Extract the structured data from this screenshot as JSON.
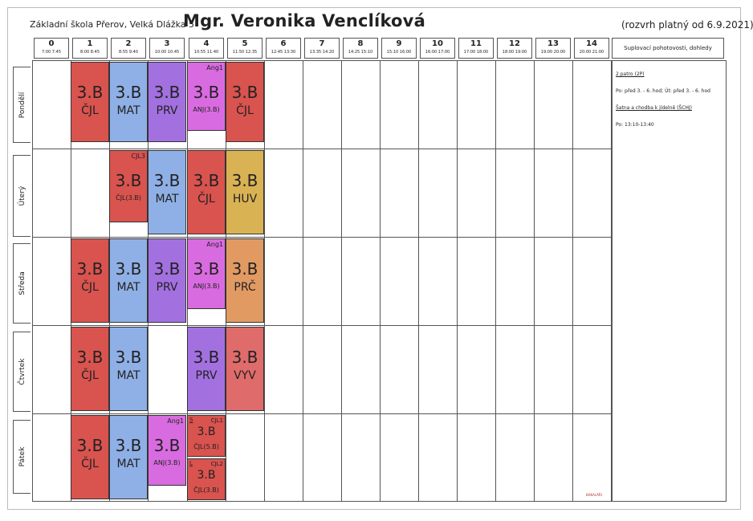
{
  "header": {
    "school": "Základní škola Přerov, Velká Dlážka 5",
    "teacher": "Mgr. Veronika Venclíková",
    "valid": "(rozvrh platný od 6.9.2021)",
    "notes_title": "Suplovací pohotovosti, dohledy"
  },
  "periods": [
    {
      "n": "0",
      "t": "7:00 7:45"
    },
    {
      "n": "1",
      "t": "8:00 8:45"
    },
    {
      "n": "2",
      "t": "8:55 9:40"
    },
    {
      "n": "3",
      "t": "10:00 10:45"
    },
    {
      "n": "4",
      "t": "10:55 11:40"
    },
    {
      "n": "5",
      "t": "11:50 12:35"
    },
    {
      "n": "6",
      "t": "12:45 13:30"
    },
    {
      "n": "7",
      "t": "13:35 14:20"
    },
    {
      "n": "8",
      "t": "14:25 15:10"
    },
    {
      "n": "9",
      "t": "15:10 16:00"
    },
    {
      "n": "10",
      "t": "16:00 17:00"
    },
    {
      "n": "11",
      "t": "17:00 18:00"
    },
    {
      "n": "12",
      "t": "18:00 19:00"
    },
    {
      "n": "13",
      "t": "19:00 20:00"
    },
    {
      "n": "14",
      "t": "20:00 21:00"
    }
  ],
  "days": [
    "Pondělí",
    "Úterý",
    "Středa",
    "Čtvrtek",
    "Pátek"
  ],
  "lessons": {
    "mon": [
      {
        "cls": "3.B",
        "sub": "ČJL",
        "room": "(3.B)",
        "tag": ""
      },
      {
        "cls": "3.B",
        "sub": "MAT",
        "room": "(3.B)",
        "tag": ""
      },
      {
        "cls": "3.B",
        "sub": "PRV",
        "room": "(3.B)",
        "tag": ""
      },
      {
        "cls": "3.B",
        "sub": "ANJ(3.B)",
        "room": "",
        "tag": "Ang1"
      },
      {
        "cls": "3.B",
        "sub": "ČJL",
        "room": "(3.B)",
        "tag": ""
      }
    ],
    "tue": [
      {
        "cls": "3.B",
        "sub": "ČJL(3.B)",
        "room": "",
        "tag": "CJL3"
      },
      {
        "cls": "3.B",
        "sub": "MAT",
        "room": "(3.B)",
        "tag": ""
      },
      {
        "cls": "3.B",
        "sub": "ČJL",
        "room": "(3.B)",
        "tag": ""
      },
      {
        "cls": "3.B",
        "sub": "HUV",
        "room": "(3.B)",
        "tag": ""
      }
    ],
    "wed": [
      {
        "cls": "3.B",
        "sub": "ČJL",
        "room": "(3.B)",
        "tag": ""
      },
      {
        "cls": "3.B",
        "sub": "MAT",
        "room": "(3.B)",
        "tag": ""
      },
      {
        "cls": "3.B",
        "sub": "PRV",
        "room": "(3.B)",
        "tag": ""
      },
      {
        "cls": "3.B",
        "sub": "ANJ(3.B)",
        "room": "",
        "tag": "Ang1"
      },
      {
        "cls": "3.B",
        "sub": "PRČ",
        "room": "(3.B)",
        "tag": ""
      }
    ],
    "thu": [
      {
        "cls": "3.B",
        "sub": "ČJL",
        "room": "(3.B)",
        "tag": ""
      },
      {
        "cls": "3.B",
        "sub": "MAT",
        "room": "(3.B)",
        "tag": ""
      },
      {
        "cls": "3.B",
        "sub": "PRV",
        "room": "(3.B)",
        "tag": ""
      },
      {
        "cls": "3.B",
        "sub": "VYV",
        "room": "(3.B)",
        "tag": ""
      }
    ],
    "fri": [
      {
        "cls": "3.B",
        "sub": "ČJL",
        "room": "(3.B)",
        "tag": ""
      },
      {
        "cls": "3.B",
        "sub": "MAT",
        "room": "(3.B)",
        "tag": ""
      },
      {
        "cls": "3.B",
        "sub": "ANJ(3.B)",
        "room": "",
        "tag": "Ang1"
      },
      {
        "cls": "3.B",
        "sub": "ČJL(5.B)",
        "room": "",
        "tag": "CJL1",
        "left": "S"
      },
      {
        "cls": "3.B",
        "sub": "ČJL(3.B)",
        "room": "",
        "tag": "CJL2",
        "left": "L"
      }
    ]
  },
  "notes": [
    {
      "text": "2.patro (2P)",
      "u": true
    },
    {
      "text": "Po: před 3. - 6. hod; Út: před 3. - 6. hod",
      "u": false
    },
    {
      "text": "Šatna a chodba k jídelně (ŠCHJ)",
      "u": true
    },
    {
      "text": "Po: 13:10-13:40",
      "u": false
    }
  ],
  "logo": "BAKALÁŘI",
  "colors": {
    "cjl": "#d9534f",
    "mat": "#8fb0e6",
    "prv": "#a370e0",
    "anj": "#d96be0",
    "huv": "#d9b253",
    "prc": "#e29a63",
    "vyv": "#e06b6b"
  }
}
